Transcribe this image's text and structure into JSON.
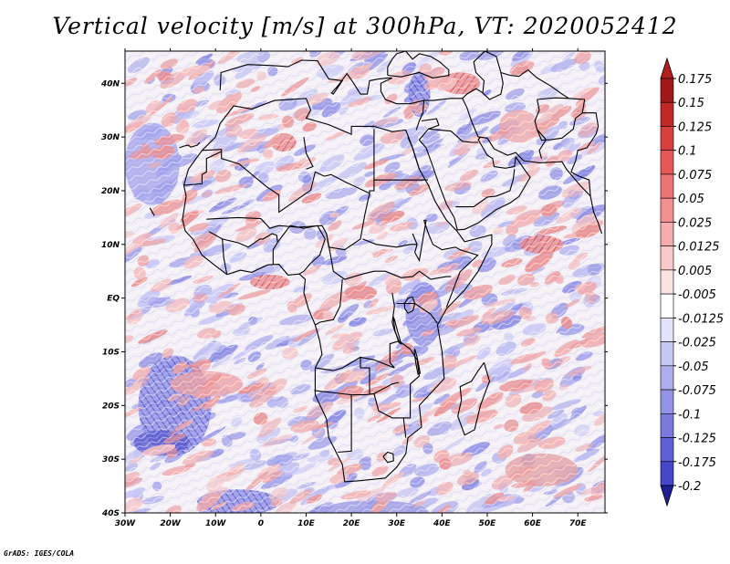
{
  "chart_data": {
    "type": "heatmap",
    "title": "Vertical velocity [m/s] at 300hPa, VT: 2020052412",
    "variable": "Vertical velocity",
    "units": "m/s",
    "level": "300hPa",
    "valid_time": "2020052412",
    "xlabel": "",
    "ylabel": "",
    "xlim": [
      -30,
      76
    ],
    "ylim": [
      -40,
      46
    ],
    "x_ticks": [
      {
        "value": -30,
        "label": "30W"
      },
      {
        "value": -20,
        "label": "20W"
      },
      {
        "value": -10,
        "label": "10W"
      },
      {
        "value": 0,
        "label": "0"
      },
      {
        "value": 10,
        "label": "10E"
      },
      {
        "value": 20,
        "label": "20E"
      },
      {
        "value": 30,
        "label": "30E"
      },
      {
        "value": 40,
        "label": "40E"
      },
      {
        "value": 50,
        "label": "50E"
      },
      {
        "value": 60,
        "label": "60E"
      },
      {
        "value": 70,
        "label": "70E"
      }
    ],
    "y_ticks": [
      {
        "value": 40,
        "label": "40N"
      },
      {
        "value": 30,
        "label": "30N"
      },
      {
        "value": 20,
        "label": "20N"
      },
      {
        "value": 10,
        "label": "10N"
      },
      {
        "value": 0,
        "label": "EQ"
      },
      {
        "value": -10,
        "label": "10S"
      },
      {
        "value": -20,
        "label": "20S"
      },
      {
        "value": -30,
        "label": "30S"
      },
      {
        "value": -40,
        "label": "40S"
      }
    ],
    "colorbar": {
      "levels": [
        {
          "label": "0.175",
          "color": "#a01818"
        },
        {
          "label": "0.15",
          "color": "#c02828"
        },
        {
          "label": "0.125",
          "color": "#d84040"
        },
        {
          "label": "0.1",
          "color": "#e45858"
        },
        {
          "label": "0.075",
          "color": "#ec7474"
        },
        {
          "label": "0.05",
          "color": "#f29090"
        },
        {
          "label": "0.025",
          "color": "#f6acac"
        },
        {
          "label": "0.0125",
          "color": "#f9c8c8"
        },
        {
          "label": "0.005",
          "color": "#fce2e2"
        },
        {
          "label": "-0.005",
          "color": "#ffffff"
        },
        {
          "label": "-0.0125",
          "color": "#e2e2fa"
        },
        {
          "label": "-0.025",
          "color": "#c8c8f4"
        },
        {
          "label": "-0.05",
          "color": "#aeaeee"
        },
        {
          "label": "-0.075",
          "color": "#9494e6"
        },
        {
          "label": "-0.1",
          "color": "#7a7ade"
        },
        {
          "label": "-0.125",
          "color": "#6060d4"
        },
        {
          "label": "-0.175",
          "color": "#4646c8"
        },
        {
          "label": "-0.2",
          "color": "#2c2cb4"
        }
      ],
      "top_color": "#b41e1e",
      "bottom_color": "#1e1e96"
    }
  },
  "credit": "GrADS: IGES/COLA",
  "colors": {
    "upward": "#e87878",
    "downward": "#8080e0",
    "neutral": "#f4f0f6",
    "coastline": "#000000"
  }
}
